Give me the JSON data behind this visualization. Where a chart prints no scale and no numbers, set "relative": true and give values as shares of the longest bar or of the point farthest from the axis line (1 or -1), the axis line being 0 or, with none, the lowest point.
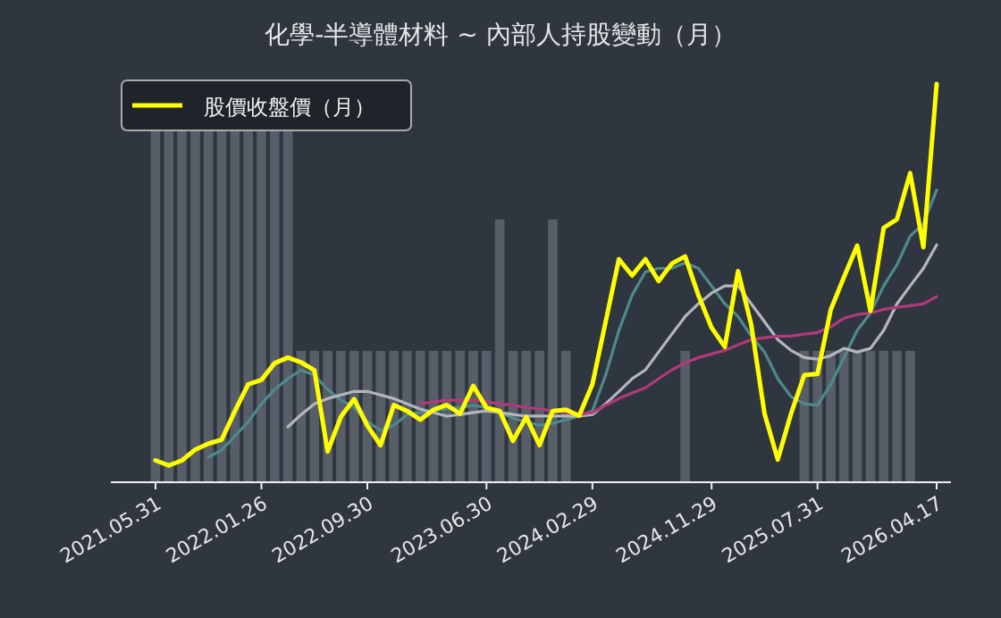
{
  "chart_data": {
    "type": "line",
    "title": "化學-半導體材料 ~ 內部人持股變動（月）",
    "relative": true,
    "legend": "top left",
    "tick_labels": "x",
    "categories": [
      "2021.05.31",
      null,
      null,
      null,
      null,
      null,
      null,
      null,
      "2022.01.26",
      null,
      null,
      null,
      null,
      null,
      null,
      null,
      "2022.09.30",
      null,
      null,
      null,
      null,
      null,
      null,
      null,
      null,
      "2023.06.30",
      null,
      null,
      null,
      null,
      null,
      null,
      null,
      "2024.02.29",
      null,
      null,
      null,
      null,
      null,
      null,
      null,
      null,
      "2024.11.29",
      null,
      null,
      null,
      null,
      null,
      null,
      null,
      "2025.07.31",
      null,
      null,
      null,
      null,
      null,
      null,
      null,
      null,
      "2026.04.17"
    ],
    "series": [
      {
        "type": "bar",
        "color": "#5f6570",
        "values": [
          0.89,
          0.89,
          0.89,
          0.89,
          0.89,
          0.89,
          0.89,
          0.89,
          0.89,
          0.89,
          0.89,
          0.33,
          0.33,
          0.33,
          0.33,
          0.33,
          0.33,
          0.33,
          0.33,
          0.33,
          0.33,
          0.33,
          0.33,
          0.33,
          0.33,
          0.33,
          0.66,
          0.33,
          0.33,
          0.33,
          0.66,
          0.33,
          null,
          null,
          null,
          null,
          null,
          null,
          null,
          null,
          0.33,
          null,
          null,
          null,
          null,
          null,
          null,
          null,
          null,
          0.33,
          0.33,
          0.33,
          0.33,
          0.33,
          0.33,
          0.33,
          0.33,
          0.33,
          null,
          null
        ]
      },
      {
        "color": "#4f8a8b",
        "values": [
          null,
          null,
          null,
          null,
          0.063,
          0.081,
          0.116,
          0.152,
          0.197,
          0.233,
          0.26,
          0.282,
          0.269,
          0.233,
          0.206,
          0.188,
          0.152,
          0.13,
          0.143,
          0.17,
          0.175,
          0.179,
          0.184,
          0.188,
          0.193,
          0.188,
          0.175,
          0.161,
          0.152,
          0.143,
          0.148,
          0.157,
          0.166,
          0.179,
          0.269,
          0.381,
          0.47,
          0.528,
          0.537,
          0.537,
          0.551,
          0.537,
          0.493,
          0.448,
          0.416,
          0.367,
          0.327,
          0.26,
          0.215,
          0.197,
          0.193,
          0.246,
          0.313,
          0.381,
          0.425,
          0.493,
          0.546,
          0.618,
          0.649,
          0.734
        ]
      },
      {
        "color": "#b4b6bd",
        "values": [
          null,
          null,
          null,
          null,
          null,
          null,
          null,
          null,
          null,
          null,
          0.139,
          0.17,
          0.197,
          0.21,
          0.219,
          0.228,
          0.228,
          0.219,
          0.21,
          0.197,
          0.184,
          0.175,
          0.166,
          0.17,
          0.175,
          0.179,
          0.175,
          0.17,
          0.166,
          0.166,
          0.166,
          0.166,
          0.166,
          0.17,
          0.197,
          0.228,
          0.26,
          0.282,
          0.327,
          0.372,
          0.416,
          0.448,
          0.475,
          0.493,
          0.493,
          0.448,
          0.403,
          0.358,
          0.331,
          0.313,
          0.309,
          0.318,
          0.336,
          0.327,
          0.336,
          0.381,
          0.448,
          0.493,
          0.537,
          0.596
        ]
      },
      {
        "color": "#b03a7a",
        "values": [
          null,
          null,
          null,
          null,
          null,
          null,
          null,
          null,
          null,
          null,
          null,
          null,
          null,
          null,
          null,
          null,
          null,
          null,
          null,
          null,
          0.197,
          0.202,
          0.206,
          0.206,
          0.206,
          0.202,
          0.197,
          0.193,
          0.188,
          0.184,
          0.179,
          0.175,
          0.17,
          0.175,
          0.193,
          0.21,
          0.224,
          0.237,
          0.26,
          0.282,
          0.3,
          0.313,
          0.322,
          0.331,
          0.345,
          0.358,
          0.363,
          0.367,
          0.367,
          0.372,
          0.376,
          0.39,
          0.412,
          0.421,
          0.425,
          0.434,
          0.439,
          0.443,
          0.448,
          0.466
        ]
      },
      {
        "name": "股價收盤價（月）",
        "color": "#ffff00",
        "values": [
          0.055,
          0.042,
          0.055,
          0.082,
          0.097,
          0.107,
          0.179,
          0.246,
          0.257,
          0.299,
          0.313,
          0.301,
          0.281,
          0.077,
          0.164,
          0.209,
          0.142,
          0.093,
          0.194,
          0.179,
          0.157,
          0.182,
          0.194,
          0.172,
          0.242,
          0.187,
          0.179,
          0.104,
          0.164,
          0.093,
          0.179,
          0.182,
          0.167,
          0.246,
          0.403,
          0.56,
          0.519,
          0.56,
          0.505,
          0.549,
          0.567,
          0.47,
          0.388,
          0.34,
          0.53,
          0.395,
          0.172,
          0.057,
          0.172,
          0.269,
          0.272,
          0.433,
          0.515,
          0.594,
          0.43,
          0.639,
          0.66,
          0.776,
          0.59,
          1
        ]
      }
    ]
  }
}
